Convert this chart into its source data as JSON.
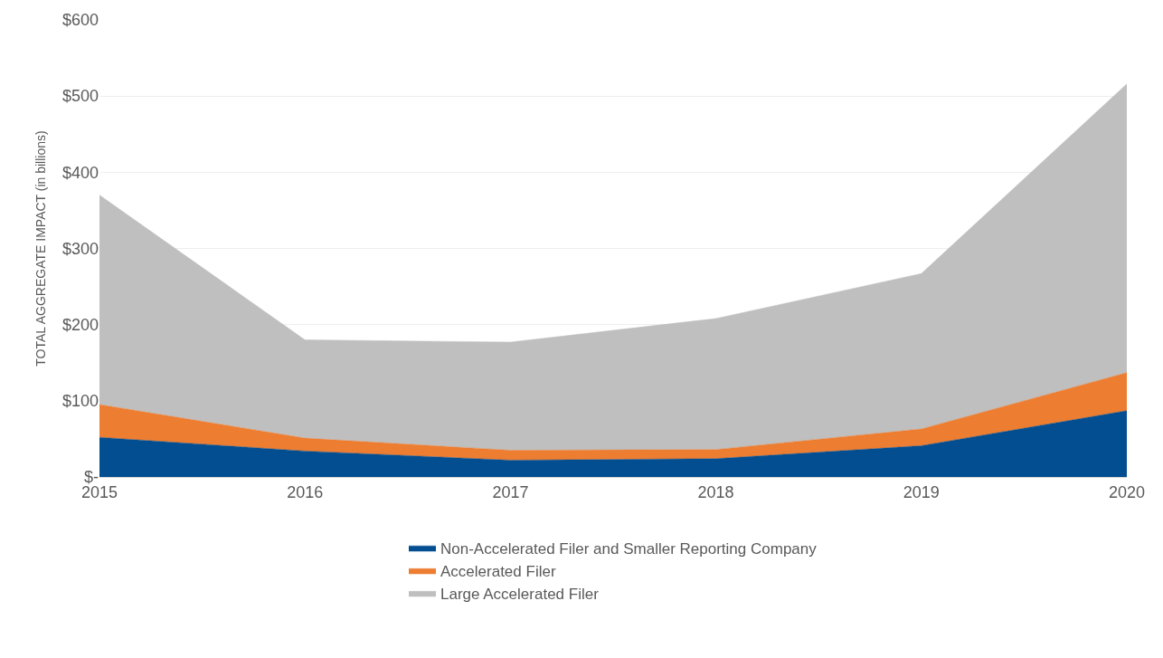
{
  "chart_data": {
    "type": "area",
    "stacked": true,
    "ylabel": "TOTAL AGGREGATE IMPACT (in billions)",
    "categories": [
      "2015",
      "2016",
      "2017",
      "2018",
      "2019",
      "2020"
    ],
    "series": [
      {
        "name": "Non-Accelerated Filer and Smaller Reporting Company",
        "color": "#034e91",
        "values": [
          52,
          34,
          22,
          24,
          41,
          87
        ]
      },
      {
        "name": "Accelerated Filer",
        "color": "#ed7d31",
        "values": [
          43,
          17,
          13,
          12,
          22,
          50
        ]
      },
      {
        "name": "Large Accelerated Filer",
        "color": "#bfbfbf",
        "values": [
          275,
          129,
          142,
          172,
          204,
          379
        ]
      }
    ],
    "ylim": [
      0,
      600
    ],
    "yticks": [
      {
        "value": 0,
        "label": "$-"
      },
      {
        "value": 100,
        "label": "$100"
      },
      {
        "value": 200,
        "label": "$200"
      },
      {
        "value": 300,
        "label": "$300"
      },
      {
        "value": 400,
        "label": "$400"
      },
      {
        "value": 500,
        "label": "$500"
      },
      {
        "value": 600,
        "label": "$600"
      }
    ],
    "grid": "y",
    "legend": "bottom"
  }
}
